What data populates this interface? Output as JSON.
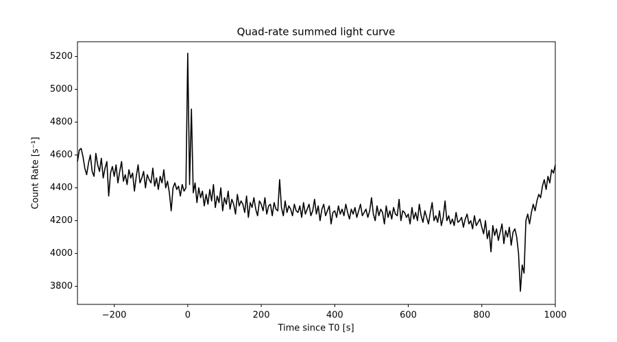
{
  "chart_data": {
    "type": "line",
    "title": "Quad-rate summed light curve",
    "x_label": "Time since T0 [s]",
    "y_label": "Count Rate [s⁻¹]",
    "x": [
      -300,
      -295,
      -290,
      -285,
      -280,
      -275,
      -270,
      -265,
      -260,
      -255,
      -250,
      -245,
      -240,
      -235,
      -230,
      -225,
      -220,
      -215,
      -210,
      -205,
      -200,
      -195,
      -190,
      -185,
      -180,
      -175,
      -170,
      -165,
      -160,
      -155,
      -150,
      -145,
      -140,
      -135,
      -130,
      -125,
      -120,
      -115,
      -110,
      -105,
      -100,
      -95,
      -90,
      -85,
      -80,
      -75,
      -70,
      -65,
      -60,
      -55,
      -50,
      -45,
      -40,
      -35,
      -30,
      -25,
      -20,
      -15,
      -10,
      -5,
      0,
      5,
      10,
      15,
      20,
      25,
      30,
      35,
      40,
      45,
      50,
      55,
      60,
      65,
      70,
      75,
      80,
      85,
      90,
      95,
      100,
      105,
      110,
      115,
      120,
      125,
      130,
      135,
      140,
      145,
      150,
      155,
      160,
      165,
      170,
      175,
      180,
      185,
      190,
      195,
      200,
      205,
      210,
      215,
      220,
      225,
      230,
      235,
      240,
      245,
      250,
      255,
      260,
      265,
      270,
      275,
      280,
      285,
      290,
      295,
      300,
      305,
      310,
      315,
      320,
      325,
      330,
      335,
      340,
      345,
      350,
      355,
      360,
      365,
      370,
      375,
      380,
      385,
      390,
      395,
      400,
      405,
      410,
      415,
      420,
      425,
      430,
      435,
      440,
      445,
      450,
      455,
      460,
      465,
      470,
      475,
      480,
      485,
      490,
      495,
      500,
      505,
      510,
      515,
      520,
      525,
      530,
      535,
      540,
      545,
      550,
      555,
      560,
      565,
      570,
      575,
      580,
      585,
      590,
      595,
      600,
      605,
      610,
      615,
      620,
      625,
      630,
      635,
      640,
      645,
      650,
      655,
      660,
      665,
      670,
      675,
      680,
      685,
      690,
      695,
      700,
      705,
      710,
      715,
      720,
      725,
      730,
      735,
      740,
      745,
      750,
      755,
      760,
      765,
      770,
      775,
      780,
      785,
      790,
      795,
      800,
      805,
      810,
      815,
      820,
      825,
      830,
      835,
      840,
      845,
      850,
      855,
      860,
      865,
      870,
      875,
      880,
      885,
      890,
      895,
      900,
      905,
      910,
      915,
      920,
      925,
      930,
      935,
      940,
      945,
      950,
      955,
      960,
      965,
      970,
      975,
      980,
      985,
      990,
      995,
      1000
    ],
    "series": [
      {
        "color": "#000000",
        "values": [
          4560,
          4630,
          4640,
          4590,
          4520,
          4480,
          4550,
          4600,
          4500,
          4470,
          4610,
          4540,
          4500,
          4580,
          4460,
          4520,
          4560,
          4350,
          4490,
          4530,
          4470,
          4540,
          4430,
          4500,
          4560,
          4440,
          4480,
          4420,
          4510,
          4460,
          4490,
          4380,
          4470,
          4540,
          4430,
          4460,
          4500,
          4400,
          4480,
          4450,
          4430,
          4520,
          4410,
          4460,
          4390,
          4470,
          4430,
          4510,
          4400,
          4440,
          4370,
          4260,
          4400,
          4430,
          4390,
          4410,
          4350,
          4420,
          4380,
          4400,
          5220,
          4420,
          4880,
          4370,
          4430,
          4310,
          4400,
          4340,
          4380,
          4290,
          4360,
          4300,
          4390,
          4320,
          4420,
          4280,
          4350,
          4310,
          4400,
          4260,
          4340,
          4300,
          4380,
          4270,
          4330,
          4300,
          4240,
          4360,
          4290,
          4320,
          4300,
          4250,
          4350,
          4220,
          4310,
          4280,
          4340,
          4270,
          4230,
          4320,
          4300,
          4260,
          4340,
          4240,
          4290,
          4300,
          4230,
          4310,
          4270,
          4260,
          4450,
          4280,
          4230,
          4320,
          4250,
          4290,
          4270,
          4230,
          4300,
          4260,
          4250,
          4290,
          4220,
          4310,
          4240,
          4270,
          4300,
          4230,
          4260,
          4330,
          4240,
          4290,
          4200,
          4270,
          4300,
          4230,
          4260,
          4290,
          4180,
          4250,
          4260,
          4220,
          4290,
          4240,
          4270,
          4230,
          4300,
          4250,
          4210,
          4270,
          4240,
          4280,
          4220,
          4260,
          4300,
          4230,
          4250,
          4270,
          4220,
          4260,
          4340,
          4240,
          4200,
          4290,
          4230,
          4270,
          4250,
          4180,
          4290,
          4220,
          4260,
          4210,
          4280,
          4240,
          4230,
          4330,
          4200,
          4260,
          4250,
          4220,
          4240,
          4180,
          4280,
          4210,
          4250,
          4200,
          4300,
          4230,
          4190,
          4260,
          4220,
          4180,
          4250,
          4310,
          4200,
          4230,
          4190,
          4260,
          4170,
          4220,
          4320,
          4200,
          4230,
          4180,
          4210,
          4170,
          4250,
          4190,
          4200,
          4220,
          4160,
          4210,
          4240,
          4180,
          4200,
          4150,
          4230,
          4170,
          4190,
          4210,
          4160,
          4120,
          4200,
          4090,
          4140,
          4010,
          4170,
          4110,
          4150,
          4080,
          4130,
          4180,
          4060,
          4140,
          4100,
          4160,
          4050,
          4130,
          4150,
          4100,
          4000,
          3770,
          3930,
          3880,
          4200,
          4240,
          4180,
          4250,
          4300,
          4260,
          4320,
          4360,
          4340,
          4410,
          4450,
          4390,
          4470,
          4430,
          4510,
          4490,
          4540
        ]
      }
    ],
    "xlim": [
      -300,
      1000
    ],
    "xticks": [
      {
        "value": -200,
        "label": "−200"
      },
      0,
      200,
      400,
      600,
      800,
      1000
    ],
    "ylim": [
      3690,
      5290
    ],
    "yticks": [
      3800,
      4000,
      4200,
      4400,
      4600,
      4800,
      5000,
      5200
    ]
  }
}
